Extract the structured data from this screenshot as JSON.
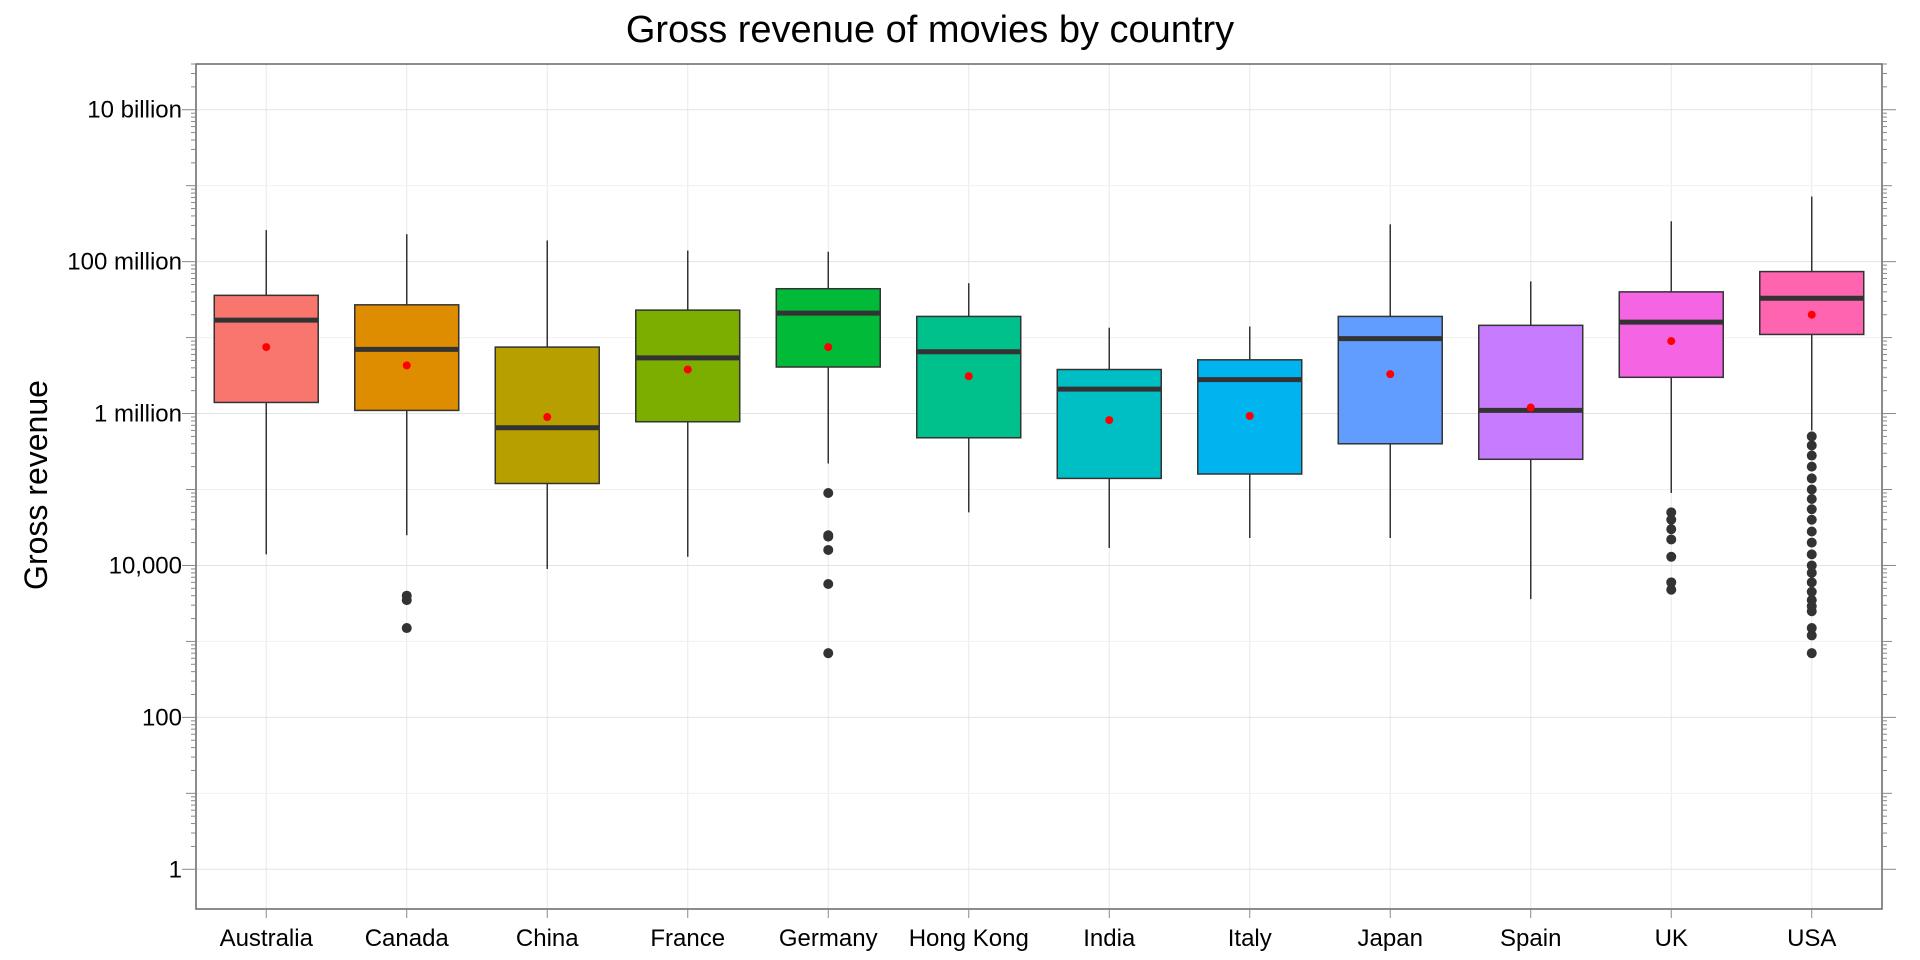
{
  "chart_data": {
    "type": "box",
    "title": "Gross revenue of movies by country",
    "xlabel": "",
    "ylabel": "Gross revenue",
    "y_scale": "log10",
    "ylim": [
      0.3,
      40000000000
    ],
    "y_ticks": [
      1,
      100,
      10000,
      1000000,
      100000000,
      10000000000
    ],
    "y_tick_labels": [
      "1",
      "100",
      "10,000",
      "1 million",
      "100 million",
      "10 billion"
    ],
    "grid": true,
    "legend": "none",
    "mean_marker_color": "#ff0000",
    "outlier_color": "#333333",
    "categories": [
      "Australia",
      "Canada",
      "China",
      "France",
      "Germany",
      "Hong Kong",
      "India",
      "Italy",
      "Japan",
      "Spain",
      "UK",
      "USA"
    ],
    "colors": [
      "#f8766d",
      "#de8c00",
      "#b79f00",
      "#7cae00",
      "#00ba38",
      "#00c08b",
      "#00bfc4",
      "#00b4f0",
      "#619cff",
      "#c77cff",
      "#f564e3",
      "#ff64b0"
    ],
    "boxes": [
      {
        "category": "Australia",
        "whisker_low": 14000,
        "q1": 1400000,
        "median": 17000000,
        "q3": 36000000,
        "whisker_high": 260000000,
        "mean": 7500000,
        "outliers": []
      },
      {
        "category": "Canada",
        "whisker_low": 25000,
        "q1": 1100000,
        "median": 7000000,
        "q3": 27000000,
        "whisker_high": 230000000,
        "mean": 4300000,
        "outliers": [
          1500,
          3500,
          4000
        ]
      },
      {
        "category": "China",
        "whisker_low": 9000,
        "q1": 120000,
        "median": 650000,
        "q3": 7500000,
        "whisker_high": 190000000,
        "mean": 900000,
        "outliers": []
      },
      {
        "category": "France",
        "whisker_low": 13000,
        "q1": 780000,
        "median": 5400000,
        "q3": 23000000,
        "whisker_high": 140000000,
        "mean": 3800000,
        "outliers": []
      },
      {
        "category": "Germany",
        "whisker_low": 220000,
        "q1": 4100000,
        "median": 21000000,
        "q3": 44000000,
        "whisker_high": 135000000,
        "mean": 7500000,
        "outliers": [
          700,
          5700,
          16000,
          24000,
          25000,
          90000
        ]
      },
      {
        "category": "Hong Kong",
        "whisker_low": 50000,
        "q1": 480000,
        "median": 6500000,
        "q3": 19000000,
        "whisker_high": 52000000,
        "mean": 3100000,
        "outliers": []
      },
      {
        "category": "India",
        "whisker_low": 17000,
        "q1": 140000,
        "median": 2100000,
        "q3": 3800000,
        "whisker_high": 13500000,
        "mean": 820000,
        "outliers": []
      },
      {
        "category": "Italy",
        "whisker_low": 23000,
        "q1": 160000,
        "median": 2800000,
        "q3": 5100000,
        "whisker_high": 14000000,
        "mean": 930000,
        "outliers": []
      },
      {
        "category": "Japan",
        "whisker_low": 23000,
        "q1": 400000,
        "median": 9700000,
        "q3": 19000000,
        "whisker_high": 310000000,
        "mean": 3300000,
        "outliers": []
      },
      {
        "category": "Spain",
        "whisker_low": 3600,
        "q1": 250000,
        "median": 1100000,
        "q3": 14500000,
        "whisker_high": 55000000,
        "mean": 1200000,
        "outliers": []
      },
      {
        "category": "UK",
        "whisker_low": 90000,
        "q1": 3000000,
        "median": 16000000,
        "q3": 40000000,
        "whisker_high": 340000000,
        "mean": 9000000,
        "outliers": [
          4800,
          6000,
          13000,
          22000,
          30000,
          40000,
          50000
        ]
      },
      {
        "category": "USA",
        "whisker_low": 600000,
        "q1": 11000000,
        "median": 33000000,
        "q3": 74000000,
        "whisker_high": 720000000,
        "mean": 20000000,
        "outliers": [
          700,
          1200,
          1500,
          2500,
          2900,
          3500,
          4500,
          6000,
          8000,
          10000,
          14000,
          20000,
          28000,
          40000,
          55000,
          75000,
          100000,
          140000,
          200000,
          280000,
          380000,
          500000
        ]
      }
    ]
  }
}
